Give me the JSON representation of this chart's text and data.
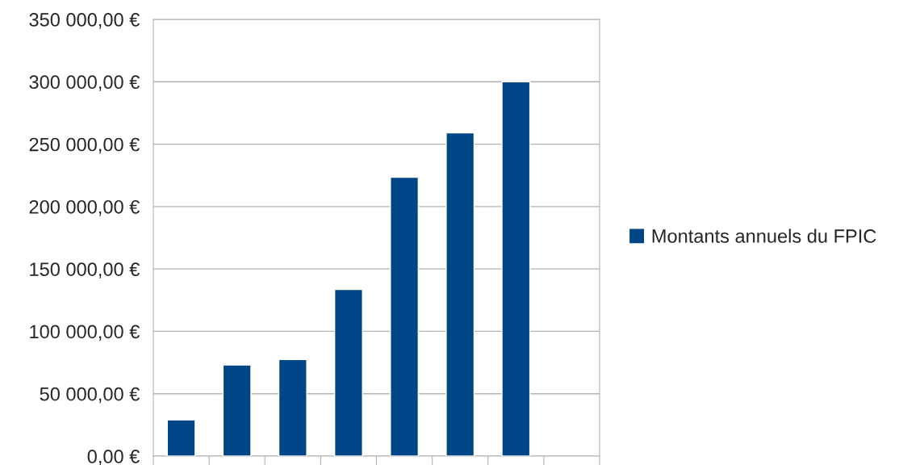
{
  "chart_data": {
    "type": "bar",
    "categories": [
      null,
      null,
      null,
      null,
      null,
      null,
      null,
      null
    ],
    "series": [
      {
        "name": "Montants annuels du FPIC",
        "color": "#004586",
        "values": [
          29000,
          73000,
          77500,
          133500,
          223500,
          259000,
          300000,
          null
        ]
      }
    ],
    "ylim": [
      0,
      350000
    ],
    "yticks": [
      {
        "value": 0,
        "label": "0,00 €"
      },
      {
        "value": 50000,
        "label": "50 000,00 €"
      },
      {
        "value": 100000,
        "label": "100 000,00 €"
      },
      {
        "value": 150000,
        "label": "150 000,00 €"
      },
      {
        "value": 200000,
        "label": "200 000,00 €"
      },
      {
        "value": 250000,
        "label": "250 000,00 €"
      },
      {
        "value": 300000,
        "label": "300 000,00 €"
      },
      {
        "value": 350000,
        "label": "350 000,00 €"
      }
    ],
    "grid": "y",
    "legend": "right"
  }
}
